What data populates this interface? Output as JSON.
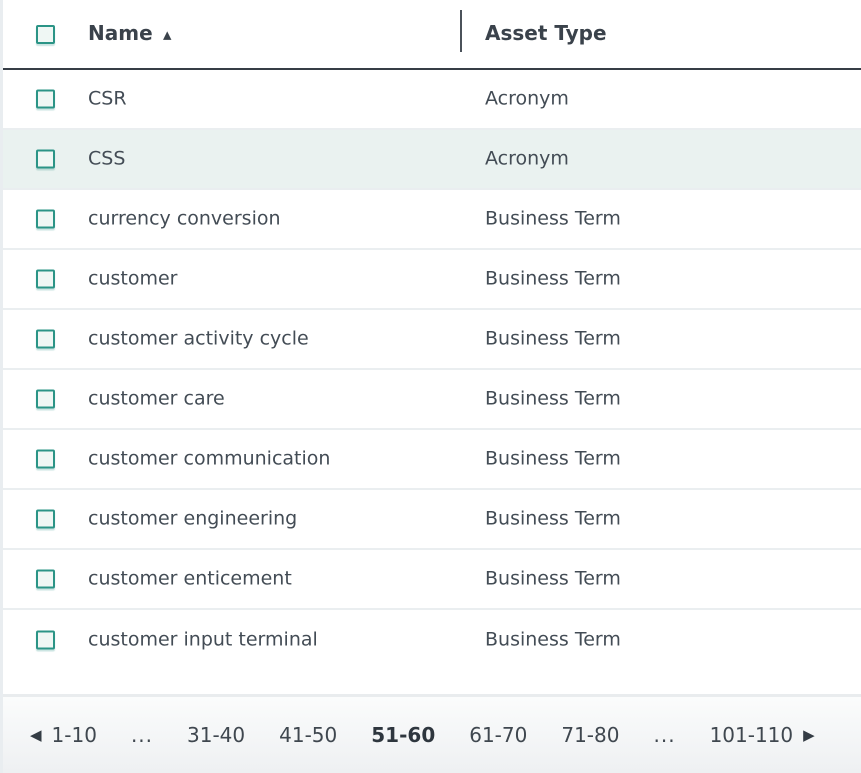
{
  "table": {
    "columns": {
      "name_label": "Name",
      "asset_type_label": "Asset Type"
    },
    "sort": {
      "column": "Name",
      "direction": "ascending"
    },
    "rows": [
      {
        "name": "CSR",
        "asset_type": "Acronym",
        "selected": false
      },
      {
        "name": "CSS",
        "asset_type": "Acronym",
        "selected": true
      },
      {
        "name": "currency conversion",
        "asset_type": "Business Term",
        "selected": false
      },
      {
        "name": "customer",
        "asset_type": "Business Term",
        "selected": false
      },
      {
        "name": "customer activity cycle",
        "asset_type": "Business Term",
        "selected": false
      },
      {
        "name": "customer care",
        "asset_type": "Business Term",
        "selected": false
      },
      {
        "name": "customer communication",
        "asset_type": "Business Term",
        "selected": false
      },
      {
        "name": "customer engineering",
        "asset_type": "Business Term",
        "selected": false
      },
      {
        "name": "customer enticement",
        "asset_type": "Business Term",
        "selected": false
      },
      {
        "name": "customer input terminal",
        "asset_type": "Business Term",
        "selected": false
      }
    ]
  },
  "icons": {
    "sort_ascending": "▲",
    "prev_page": "◀",
    "next_page": "▶"
  },
  "pagination": {
    "pages": [
      {
        "label": "1-10"
      },
      {
        "label": "...",
        "ellipsis": true
      },
      {
        "label": "31-40"
      },
      {
        "label": "41-50"
      },
      {
        "label": "51-60",
        "current": true
      },
      {
        "label": "61-70"
      },
      {
        "label": "71-80"
      },
      {
        "label": "...",
        "ellipsis": true
      },
      {
        "label": "101-110"
      }
    ]
  },
  "colors": {
    "accent_teal": "#2b9486",
    "selected_row_bg": "#eaf2f0",
    "header_text": "#3a424b",
    "row_text": "#434c55",
    "header_border": "#363d46",
    "row_separator": "#eaeef0",
    "footer_bg_top": "#fbfcfc",
    "footer_bg_bottom": "#eef0f2"
  }
}
